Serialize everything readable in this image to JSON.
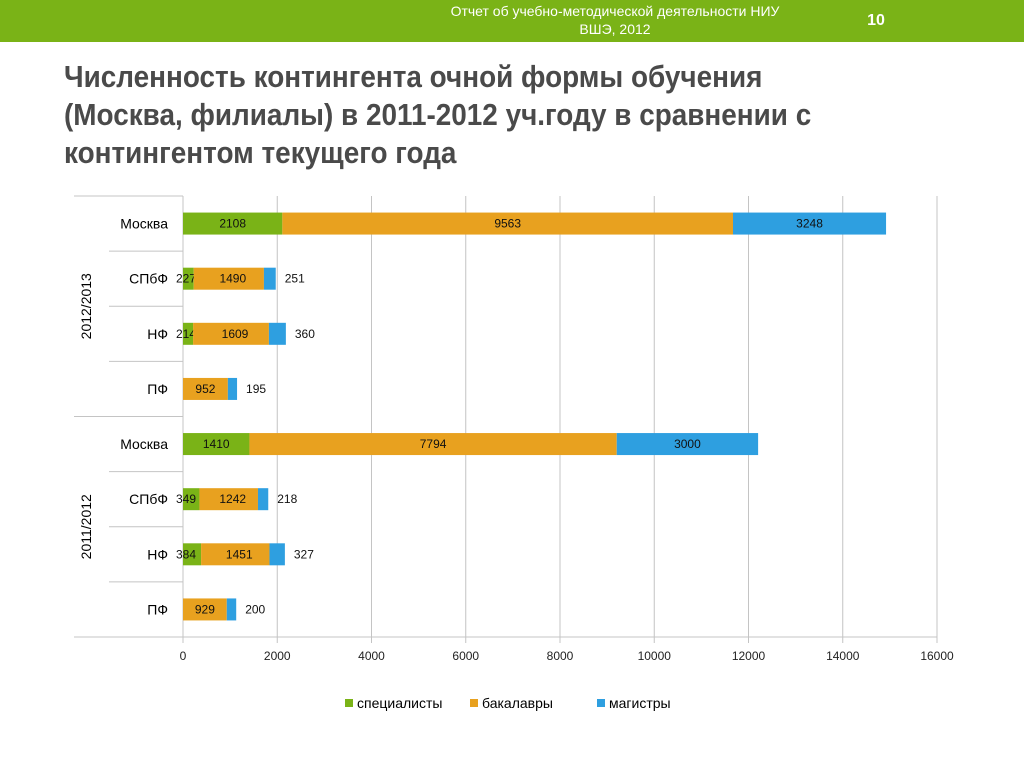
{
  "header": {
    "report_line1": "Отчет об учебно-методической деятельности НИУ",
    "report_line2": "ВШЭ, 2012",
    "page_number": "10"
  },
  "slide": {
    "title_line1": "Численность контингента очной формы обучения",
    "title_line2": "(Москва, филиалы) в 2011-2012 уч.году в сравнении  с",
    "title_line3": "контингентом текущего  года"
  },
  "colors": {
    "header_bar": "#7ab317",
    "specialists": "#7ab317",
    "bachelors": "#e8a11f",
    "masters": "#2e9fe0"
  },
  "chart_data": {
    "type": "bar",
    "orientation": "horizontal",
    "stacked": true,
    "xlim": [
      0,
      16000
    ],
    "x_ticks": [
      "0",
      "2000",
      "4000",
      "6000",
      "8000",
      "10000",
      "12000",
      "14000",
      "16000"
    ],
    "grid": true,
    "legend_position": "bottom",
    "groups": [
      {
        "label": "2012/2013",
        "categories": [
          "Москва",
          "СПбФ",
          "НФ",
          "ПФ"
        ]
      },
      {
        "label": "2011/2012",
        "categories": [
          "Москва",
          "СПбФ",
          "НФ",
          "ПФ"
        ]
      }
    ],
    "series": [
      {
        "name": "специалисты",
        "color": "#7ab317",
        "values": [
          2108,
          227,
          214,
          null,
          1410,
          349,
          384,
          null
        ]
      },
      {
        "name": "бакалавры",
        "color": "#e8a11f",
        "values": [
          9563,
          1490,
          1609,
          952,
          7794,
          1242,
          1451,
          929
        ]
      },
      {
        "name": "магистры",
        "color": "#2e9fe0",
        "values": [
          3248,
          251,
          360,
          195,
          3000,
          218,
          327,
          200
        ]
      }
    ]
  }
}
